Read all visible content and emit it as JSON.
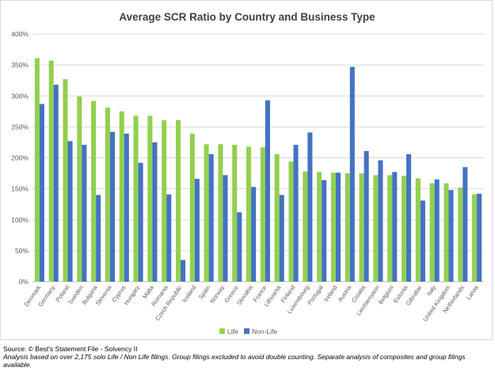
{
  "chart_data": {
    "type": "bar",
    "title": "Average SCR Ratio by Country and Business Type",
    "xlabel": "",
    "ylabel": "",
    "ylim": [
      0,
      400
    ],
    "yticks": [
      "0%",
      "50%",
      "100%",
      "150%",
      "200%",
      "250%",
      "300%",
      "350%",
      "400%"
    ],
    "ytick_values": [
      0,
      50,
      100,
      150,
      200,
      250,
      300,
      350,
      400
    ],
    "grid": true,
    "legend_position": "bottom",
    "categories": [
      "Denmark",
      "Germany",
      "Poland",
      "Sweden",
      "Bulgaria",
      "Slovenia",
      "Cyprus",
      "Hungary",
      "Malta",
      "Romania",
      "Czech Republic",
      "Iceland",
      "Spain",
      "Norway",
      "Greece",
      "Slovakia",
      "France",
      "Lithuania",
      "Finland",
      "Luxembourg",
      "Portugal",
      "Ireland",
      "Austria",
      "Croatia",
      "Liechtenstein",
      "Belgium",
      "Estonia",
      "Gibraltar",
      "Italy",
      "United Kingdom",
      "Netherlands",
      "Latvia"
    ],
    "series": [
      {
        "name": "Life",
        "color": "#92d050",
        "values": [
          361,
          357,
          327,
          299,
          292,
          281,
          275,
          268,
          268,
          261,
          261,
          239,
          222,
          222,
          221,
          218,
          217,
          206,
          194,
          178,
          177,
          176,
          175,
          175,
          172,
          172,
          171,
          167,
          159,
          159,
          152,
          141
        ]
      },
      {
        "name": "Non-Life",
        "color": "#4472c4",
        "values": [
          287,
          318,
          227,
          221,
          140,
          242,
          239,
          192,
          225,
          141,
          35,
          166,
          206,
          172,
          112,
          153,
          293,
          140,
          221,
          241,
          164,
          176,
          347,
          211,
          196,
          177,
          206,
          131,
          165,
          148,
          185,
          142
        ]
      }
    ]
  },
  "footer": {
    "source": "Source: © Best's Statement File - Solvency II",
    "note": "Analysis based on over 2,175 solo Life / Non Life filings. Group filings excluded to avoid double counting. Separate analysis of  composites and group filings available."
  }
}
